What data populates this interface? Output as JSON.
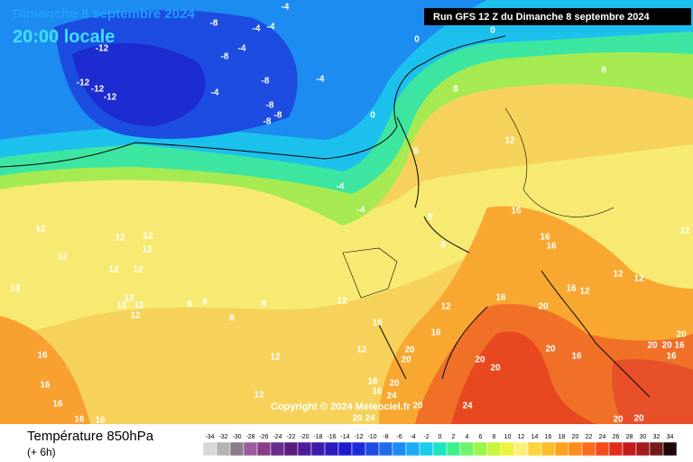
{
  "header": {
    "date": "Dimanche 8 septembre 2024",
    "time": "20:00 locale",
    "run": "Run GFS 12 Z du Dimanche 8 septembre 2024"
  },
  "copyright": "Copyright © 2024 Meteociel.fr",
  "legend": {
    "title": "Température 850hPa",
    "subtitle": "(+ 6h)"
  },
  "colorbar": {
    "values": [
      -34,
      -32,
      -30,
      -28,
      -26,
      -24,
      -22,
      -20,
      -18,
      -16,
      -14,
      -12,
      -10,
      -8,
      -6,
      -4,
      -2,
      0,
      2,
      4,
      6,
      8,
      10,
      12,
      14,
      16,
      18,
      20,
      22,
      24,
      26,
      28,
      30,
      32,
      34
    ],
    "colors": [
      "#d8d8d8",
      "#b4b4b4",
      "#8c7c8c",
      "#9c5c9c",
      "#8a3c8a",
      "#6c2c8c",
      "#5a1c7c",
      "#4c1c9c",
      "#3c1cac",
      "#2c1cbc",
      "#1c1ccc",
      "#1c2cdc",
      "#1c4ce4",
      "#1c6cec",
      "#1c8cf4",
      "#1cacf4",
      "#1cccec",
      "#1ce4c4",
      "#3cf08c",
      "#6cf46c",
      "#9cf44c",
      "#ccf43c",
      "#ecf43c",
      "#fcf07c",
      "#fcd43c",
      "#fcbc2c",
      "#fca41c",
      "#fc8c1c",
      "#fc6c1c",
      "#f44c1c",
      "#e42c1c",
      "#c41c1c",
      "#a41c1c",
      "#741c1c",
      "#200808"
    ]
  },
  "map": {
    "labels": [
      -12,
      -8,
      -4,
      -4,
      -4,
      -4,
      -8,
      -4,
      -8,
      -4,
      -12,
      -12,
      -12,
      -8,
      -8,
      -8,
      0,
      0,
      0,
      8,
      8,
      8,
      12,
      -4,
      -4,
      8,
      16,
      16,
      16,
      8,
      12,
      12,
      12,
      12,
      12,
      12,
      12,
      16,
      12,
      12,
      12,
      12,
      8,
      8,
      8,
      8,
      12,
      16,
      16,
      12,
      12,
      12,
      12,
      20,
      16,
      16,
      20,
      20,
      12,
      12,
      16,
      16,
      16,
      16,
      16,
      20,
      20,
      20,
      20,
      20,
      16,
      20,
      16,
      16,
      16,
      20,
      16,
      24,
      12,
      20,
      20,
      24,
      24,
      20,
      20,
      12
    ]
  }
}
